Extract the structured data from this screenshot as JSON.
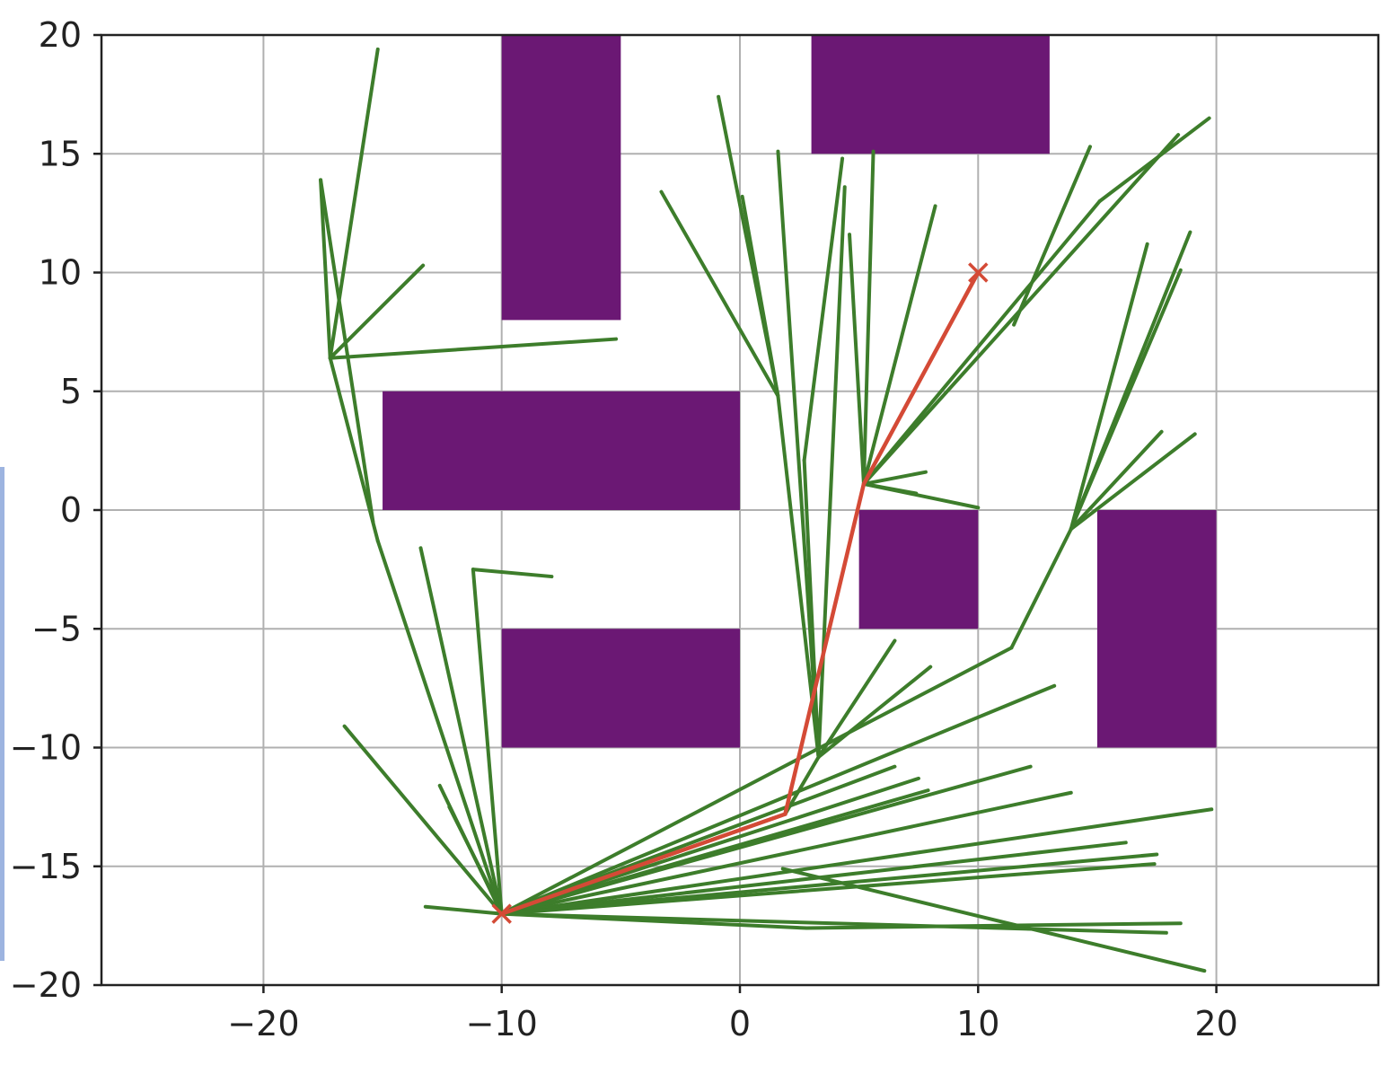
{
  "chart_data": {
    "type": "line",
    "xlim": [
      -26.8,
      26.8
    ],
    "ylim": [
      -20,
      20
    ],
    "x_ticks": [
      -20,
      -10,
      0,
      10,
      20
    ],
    "y_ticks": [
      20,
      15,
      10,
      5,
      0,
      -5,
      -10,
      -15,
      -20
    ],
    "x_tick_labels": [
      "−20",
      "−10",
      "0",
      "10",
      "20"
    ],
    "y_tick_labels": [
      "20",
      "15",
      "10",
      "5",
      "0",
      "−5",
      "−10",
      "−15",
      "−20"
    ],
    "grid": true,
    "colors": {
      "obstacle": "#6b1874",
      "tree": "#3d7d2b",
      "path": "#d44a36"
    },
    "obstacles": [
      {
        "x0": -10,
        "x1": -5,
        "y0": 8,
        "y1": 20
      },
      {
        "x0": 3,
        "x1": 13,
        "y0": 15,
        "y1": 20
      },
      {
        "x0": -15,
        "x1": 0,
        "y0": 0,
        "y1": 5
      },
      {
        "x0": -10,
        "x1": 0,
        "y0": -10,
        "y1": -5
      },
      {
        "x0": 5,
        "x1": 10,
        "y0": -5,
        "y1": 0
      },
      {
        "x0": 15,
        "x1": 20,
        "y0": -10,
        "y1": 0
      }
    ],
    "start": [
      -10,
      -17
    ],
    "goal": [
      10,
      10
    ],
    "path": [
      [
        -10,
        -17
      ],
      [
        1.9,
        -12.8
      ],
      [
        5.2,
        1.1
      ],
      [
        10,
        10
      ]
    ],
    "tree_edges": [
      [
        [
          -10,
          -17
        ],
        [
          -15.2,
          -1.3
        ]
      ],
      [
        [
          -15.2,
          -1.3
        ],
        [
          -17.2,
          6.4
        ]
      ],
      [
        [
          -17.2,
          6.4
        ],
        [
          -15.2,
          19.4
        ]
      ],
      [
        [
          -17.2,
          6.4
        ],
        [
          -13.3,
          10.3
        ]
      ],
      [
        [
          -17.2,
          6.4
        ],
        [
          -5.2,
          7.2
        ]
      ],
      [
        [
          -17.2,
          6.4
        ],
        [
          -17.6,
          13.9
        ]
      ],
      [
        [
          -17.6,
          13.9
        ],
        [
          -15.4,
          -0.5
        ]
      ],
      [
        [
          -10,
          -17
        ],
        [
          -13.4,
          -1.6
        ]
      ],
      [
        [
          -10,
          -17
        ],
        [
          -11.2,
          -2.5
        ]
      ],
      [
        [
          -11.2,
          -2.5
        ],
        [
          -7.9,
          -2.8
        ]
      ],
      [
        [
          -10,
          -17
        ],
        [
          -16.6,
          -9.1
        ]
      ],
      [
        [
          -10,
          -17
        ],
        [
          -12.6,
          -11.6
        ]
      ],
      [
        [
          -12.2,
          -12.5
        ],
        [
          -10.3,
          -16.3
        ]
      ],
      [
        [
          -10,
          -17
        ],
        [
          -13.2,
          -16.7
        ]
      ],
      [
        [
          -10,
          -17
        ],
        [
          1.9,
          -12.8
        ]
      ],
      [
        [
          1.9,
          -12.8
        ],
        [
          3.3,
          -10.4
        ]
      ],
      [
        [
          3.3,
          -10.4
        ],
        [
          2.7,
          2.1
        ]
      ],
      [
        [
          2.7,
          2.1
        ],
        [
          4.3,
          14.8
        ]
      ],
      [
        [
          3.3,
          -10.4
        ],
        [
          1.6,
          4.8
        ]
      ],
      [
        [
          1.6,
          4.8
        ],
        [
          -3.3,
          13.4
        ]
      ],
      [
        [
          1.6,
          4.8
        ],
        [
          -0.9,
          17.4
        ]
      ],
      [
        [
          1.6,
          4.8
        ],
        [
          0.1,
          13.2
        ]
      ],
      [
        [
          3.3,
          -10.4
        ],
        [
          1.6,
          15.1
        ]
      ],
      [
        [
          3.3,
          -10.4
        ],
        [
          4.4,
          13.6
        ]
      ],
      [
        [
          3.3,
          -10.4
        ],
        [
          6.5,
          -5.5
        ]
      ],
      [
        [
          3.3,
          -10.4
        ],
        [
          8,
          -6.6
        ]
      ],
      [
        [
          5.2,
          1.1
        ],
        [
          4.6,
          11.6
        ]
      ],
      [
        [
          5.2,
          1.1
        ],
        [
          5.6,
          15.1
        ]
      ],
      [
        [
          5.2,
          1.1
        ],
        [
          8.2,
          12.8
        ]
      ],
      [
        [
          5.2,
          1.1
        ],
        [
          15.1,
          13.0
        ]
      ],
      [
        [
          15.1,
          13.0
        ],
        [
          19.7,
          16.5
        ]
      ],
      [
        [
          5.2,
          1.1
        ],
        [
          18.4,
          15.8
        ]
      ],
      [
        [
          5.2,
          1.1
        ],
        [
          7.8,
          1.6
        ]
      ],
      [
        [
          5.2,
          1.1
        ],
        [
          10,
          0.1
        ]
      ],
      [
        [
          5.2,
          1.1
        ],
        [
          7.4,
          0.7
        ]
      ],
      [
        [
          11.5,
          7.8
        ],
        [
          14.7,
          15.3
        ]
      ],
      [
        [
          -10,
          -17
        ],
        [
          11.4,
          -5.8
        ]
      ],
      [
        [
          11.4,
          -5.8
        ],
        [
          13.9,
          -0.8
        ]
      ],
      [
        [
          13.9,
          -0.8
        ],
        [
          17.1,
          11.2
        ]
      ],
      [
        [
          13.9,
          -0.8
        ],
        [
          18.9,
          11.7
        ]
      ],
      [
        [
          13.9,
          -0.8
        ],
        [
          18.5,
          10.1
        ]
      ],
      [
        [
          13.9,
          -0.8
        ],
        [
          17.7,
          3.3
        ]
      ],
      [
        [
          13.9,
          -0.8
        ],
        [
          19.1,
          3.2
        ]
      ],
      [
        [
          -10,
          -17
        ],
        [
          13.2,
          -7.4
        ]
      ],
      [
        [
          -10,
          -17
        ],
        [
          6.5,
          -10.8
        ]
      ],
      [
        [
          -10,
          -17
        ],
        [
          7.5,
          -11.3
        ]
      ],
      [
        [
          -10,
          -17
        ],
        [
          7.9,
          -11.8
        ]
      ],
      [
        [
          -10,
          -17
        ],
        [
          12.2,
          -10.8
        ]
      ],
      [
        [
          -10,
          -17
        ],
        [
          13.9,
          -11.9
        ]
      ],
      [
        [
          -10,
          -17
        ],
        [
          19.8,
          -12.6
        ]
      ],
      [
        [
          -10,
          -17
        ],
        [
          16.2,
          -14.0
        ]
      ],
      [
        [
          -10,
          -17
        ],
        [
          17.5,
          -14.5
        ]
      ],
      [
        [
          -10,
          -17
        ],
        [
          17.4,
          -14.9
        ]
      ],
      [
        [
          1.8,
          -15.1
        ],
        [
          19.5,
          -19.4
        ]
      ],
      [
        [
          -10,
          -17
        ],
        [
          2.8,
          -17.6
        ]
      ],
      [
        [
          2.8,
          -17.6
        ],
        [
          18.5,
          -17.4
        ]
      ],
      [
        [
          -10,
          -17
        ],
        [
          17.9,
          -17.8
        ]
      ]
    ]
  }
}
